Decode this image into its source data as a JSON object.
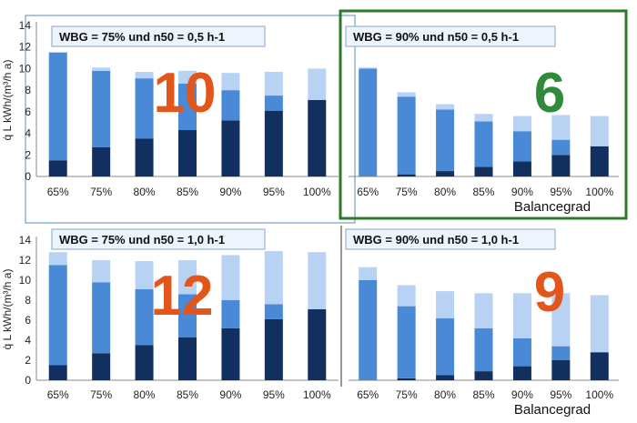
{
  "colors": {
    "bottom": "#12305f",
    "middle": "#4a89d6",
    "top": "#b7d2f2",
    "badge_orange": "#e2561c",
    "badge_green": "#2f8a3a",
    "highlight_border": "#2a7a2a",
    "panel_border": "#5b8bb8"
  },
  "y_axis_label": "q̇ L kWh/(m³/h a)",
  "y_ticks": [
    0,
    2,
    4,
    6,
    8,
    10,
    12,
    14
  ],
  "x_axis_label": "Balancegrad",
  "chart_data": [
    {
      "type": "bar",
      "stacked": true,
      "title": "WBG = 75% und n50 = 0,5 h-1",
      "badge": "10",
      "ylim": [
        0,
        14
      ],
      "categories": [
        "65%",
        "75%",
        "80%",
        "85%",
        "90%",
        "95%",
        "100%"
      ],
      "series": [
        {
          "values": [
            1.5,
            2.7,
            3.5,
            4.3,
            5.2,
            6.1,
            7.1
          ]
        },
        {
          "values": [
            10.0,
            7.1,
            5.6,
            4.3,
            2.8,
            1.4,
            0.0
          ]
        },
        {
          "values": [
            0.0,
            0.3,
            0.6,
            1.2,
            1.6,
            2.2,
            2.9
          ]
        }
      ]
    },
    {
      "type": "bar",
      "stacked": true,
      "title": "WBG = 90% und n50 = 0,5 h-1",
      "badge": "6",
      "highlighted": true,
      "xlabel": "Balancegrad",
      "ylim": [
        0,
        14
      ],
      "categories": [
        "65%",
        "75%",
        "80%",
        "85%",
        "90%",
        "95%",
        "100%"
      ],
      "series": [
        {
          "values": [
            0.0,
            0.2,
            0.5,
            0.9,
            1.4,
            2.0,
            2.8
          ]
        },
        {
          "values": [
            10.0,
            7.2,
            5.7,
            4.2,
            2.8,
            1.4,
            0.0
          ]
        },
        {
          "values": [
            0.1,
            0.4,
            0.5,
            0.7,
            1.4,
            2.3,
            2.8
          ]
        }
      ]
    },
    {
      "type": "bar",
      "stacked": true,
      "title": "WBG = 75% und n50 = 1,0 h-1",
      "badge": "12",
      "ylim": [
        0,
        14
      ],
      "categories": [
        "65%",
        "75%",
        "80%",
        "85%",
        "90%",
        "95%",
        "100%"
      ],
      "series": [
        {
          "values": [
            1.5,
            2.7,
            3.5,
            4.3,
            5.2,
            6.1,
            7.1
          ]
        },
        {
          "values": [
            10.0,
            7.1,
            5.6,
            4.3,
            2.8,
            1.5,
            0.0
          ]
        },
        {
          "values": [
            1.3,
            2.2,
            2.8,
            3.4,
            4.5,
            5.3,
            5.7
          ]
        }
      ]
    },
    {
      "type": "bar",
      "stacked": true,
      "title": "WBG = 90% und n50 = 1,0 h-1",
      "badge": "9",
      "xlabel": "Balancegrad",
      "ylim": [
        0,
        14
      ],
      "categories": [
        "65%",
        "75%",
        "80%",
        "85%",
        "90%",
        "95%",
        "100%"
      ],
      "series": [
        {
          "values": [
            0.0,
            0.2,
            0.5,
            0.9,
            1.4,
            2.0,
            2.8
          ]
        },
        {
          "values": [
            10.0,
            7.2,
            5.7,
            4.3,
            2.8,
            1.4,
            0.0
          ]
        },
        {
          "values": [
            1.3,
            2.1,
            2.7,
            3.5,
            4.5,
            5.3,
            5.7
          ]
        }
      ]
    }
  ]
}
